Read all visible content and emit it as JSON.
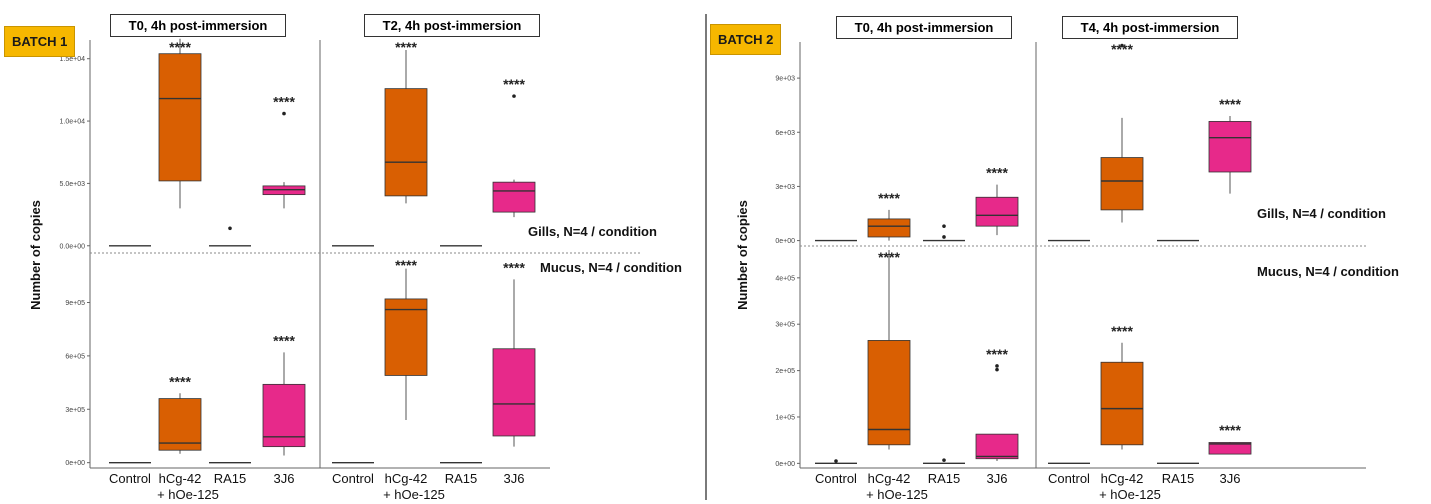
{
  "batches": [
    {
      "label": "BATCH 1",
      "y_label": "Number of copies",
      "panels": [
        "T0, 4h post-immersion",
        "T2, 4h post-immersion"
      ],
      "row_labels": [
        "Gills, N=4 / condition",
        "Mucus, N=4 / condition"
      ],
      "categories": [
        "Control",
        "hCg-42\n+ hOe-125",
        "RA15",
        "3J6"
      ],
      "top_ticks": [
        "0.0e+00",
        "5.0e+03",
        "1.0e+04",
        "1.5e+04"
      ],
      "bottom_ticks": [
        "0e+00",
        "3e+05",
        "6e+05",
        "9e+05"
      ]
    },
    {
      "label": "BATCH 2",
      "y_label": "Number of copies",
      "panels": [
        "T0, 4h post-immersion",
        "T4, 4h post-immersion"
      ],
      "row_labels": [
        "Gills, N=4 / condition",
        "Mucus, N=4 / condition"
      ],
      "categories": [
        "Control",
        "hCg-42\n+ hOe-125",
        "RA15",
        "3J6"
      ],
      "top_ticks": [
        "0e+00",
        "3e+03",
        "6e+03",
        "9e+03"
      ],
      "bottom_ticks": [
        "0e+00",
        "1e+05",
        "2e+05",
        "3e+05",
        "4e+05"
      ]
    }
  ],
  "colors": {
    "hCg-42": "#d95f02",
    "3J6": "#e7298a",
    "box_line": "#333333"
  },
  "chart_data": [
    {
      "type": "box",
      "batch": "BATCH 1",
      "panel": "T0, 4h post-immersion",
      "tissue": "Gills",
      "ylim": [
        -500,
        16500
      ],
      "boxes": [
        {
          "category": "Control",
          "q1": 0,
          "median": 0,
          "q3": 0,
          "whisker_low": 0,
          "whisker_high": 0,
          "outliers": [],
          "sig": ""
        },
        {
          "category": "hCg-42 + hOe-125",
          "q1": 5200,
          "median": 11800,
          "q3": 15400,
          "whisker_low": 3000,
          "whisker_high": 16600,
          "outliers": [],
          "sig": "****"
        },
        {
          "category": "RA15",
          "q1": 0,
          "median": 0,
          "q3": 0,
          "whisker_low": 0,
          "whisker_high": 0,
          "outliers": [
            1400
          ],
          "sig": ""
        },
        {
          "category": "3J6",
          "q1": 4100,
          "median": 4500,
          "q3": 4800,
          "whisker_low": 3000,
          "whisker_high": 5100,
          "outliers": [
            10600
          ],
          "sig": "****"
        }
      ]
    },
    {
      "type": "box",
      "batch": "BATCH 1",
      "panel": "T2, 4h post-immersion",
      "tissue": "Gills",
      "ylim": [
        -500,
        16500
      ],
      "boxes": [
        {
          "category": "Control",
          "q1": 0,
          "median": 0,
          "q3": 0,
          "whisker_low": 0,
          "whisker_high": 0,
          "outliers": [],
          "sig": ""
        },
        {
          "category": "hCg-42 + hOe-125",
          "q1": 4000,
          "median": 6700,
          "q3": 12600,
          "whisker_low": 3400,
          "whisker_high": 15700,
          "outliers": [],
          "sig": "****"
        },
        {
          "category": "RA15",
          "q1": 0,
          "median": 0,
          "q3": 0,
          "whisker_low": 0,
          "whisker_high": 0,
          "outliers": [],
          "sig": ""
        },
        {
          "category": "3J6",
          "q1": 2700,
          "median": 4400,
          "q3": 5100,
          "whisker_low": 2300,
          "whisker_high": 5300,
          "outliers": [
            12000
          ],
          "sig": "****"
        }
      ]
    },
    {
      "type": "box",
      "batch": "BATCH 1",
      "panel": "T0, 4h post-immersion",
      "tissue": "Mucus",
      "ylim": [
        -30000,
        1150000
      ],
      "boxes": [
        {
          "category": "Control",
          "q1": 0,
          "median": 0,
          "q3": 0,
          "whisker_low": 0,
          "whisker_high": 0,
          "outliers": [],
          "sig": ""
        },
        {
          "category": "hCg-42 + hOe-125",
          "q1": 70000,
          "median": 110000,
          "q3": 360000,
          "whisker_low": 50000,
          "whisker_high": 390000,
          "outliers": [],
          "sig": "****"
        },
        {
          "category": "RA15",
          "q1": 0,
          "median": 0,
          "q3": 0,
          "whisker_low": 0,
          "whisker_high": 0,
          "outliers": [],
          "sig": ""
        },
        {
          "category": "3J6",
          "q1": 90000,
          "median": 145000,
          "q3": 440000,
          "whisker_low": 40000,
          "whisker_high": 620000,
          "outliers": [],
          "sig": "****"
        }
      ]
    },
    {
      "type": "box",
      "batch": "BATCH 1",
      "panel": "T2, 4h post-immersion",
      "tissue": "Mucus",
      "ylim": [
        -30000,
        1150000
      ],
      "boxes": [
        {
          "category": "Control",
          "q1": 0,
          "median": 0,
          "q3": 0,
          "whisker_low": 0,
          "whisker_high": 0,
          "outliers": [],
          "sig": ""
        },
        {
          "category": "hCg-42 + hOe-125",
          "q1": 490000,
          "median": 860000,
          "q3": 920000,
          "whisker_low": 240000,
          "whisker_high": 1090000,
          "outliers": [],
          "sig": "****"
        },
        {
          "category": "RA15",
          "q1": 0,
          "median": 0,
          "q3": 0,
          "whisker_low": 0,
          "whisker_high": 0,
          "outliers": [],
          "sig": ""
        },
        {
          "category": "3J6",
          "q1": 150000,
          "median": 330000,
          "q3": 640000,
          "whisker_low": 90000,
          "whisker_high": 1030000,
          "outliers": [],
          "sig": "****"
        }
      ]
    },
    {
      "type": "box",
      "batch": "BATCH 2",
      "panel": "T0, 4h post-immersion",
      "tissue": "Gills",
      "ylim": [
        -300,
        11000
      ],
      "boxes": [
        {
          "category": "Control",
          "q1": 0,
          "median": 0,
          "q3": 0,
          "whisker_low": 0,
          "whisker_high": 0,
          "outliers": [],
          "sig": ""
        },
        {
          "category": "hCg-42 + hOe-125",
          "q1": 200,
          "median": 800,
          "q3": 1200,
          "whisker_low": 0,
          "whisker_high": 1700,
          "outliers": [],
          "sig": "****"
        },
        {
          "category": "RA15",
          "q1": 0,
          "median": 0,
          "q3": 0,
          "whisker_low": 0,
          "whisker_high": 0,
          "outliers": [
            200,
            800
          ],
          "sig": ""
        },
        {
          "category": "3J6",
          "q1": 800,
          "median": 1400,
          "q3": 2400,
          "whisker_low": 300,
          "whisker_high": 3100,
          "outliers": [],
          "sig": "****"
        }
      ]
    },
    {
      "type": "box",
      "batch": "BATCH 2",
      "panel": "T4, 4h post-immersion",
      "tissue": "Gills",
      "ylim": [
        -300,
        11000
      ],
      "boxes": [
        {
          "category": "Control",
          "q1": 0,
          "median": 0,
          "q3": 0,
          "whisker_low": 0,
          "whisker_high": 0,
          "outliers": [],
          "sig": ""
        },
        {
          "category": "hCg-42 + hOe-125",
          "q1": 1700,
          "median": 3300,
          "q3": 4600,
          "whisker_low": 1000,
          "whisker_high": 6800,
          "outliers": [
            10800
          ],
          "sig": "****"
        },
        {
          "category": "RA15",
          "q1": 0,
          "median": 0,
          "q3": 0,
          "whisker_low": 0,
          "whisker_high": 0,
          "outliers": [],
          "sig": ""
        },
        {
          "category": "3J6",
          "q1": 3800,
          "median": 5700,
          "q3": 6600,
          "whisker_low": 2600,
          "whisker_high": 6900,
          "outliers": [],
          "sig": "****"
        }
      ]
    },
    {
      "type": "box",
      "batch": "BATCH 2",
      "panel": "T0, 4h post-immersion",
      "tissue": "Mucus",
      "ylim": [
        -10000,
        460000
      ],
      "boxes": [
        {
          "category": "Control",
          "q1": 0,
          "median": 0,
          "q3": 0,
          "whisker_low": 0,
          "whisker_high": 0,
          "outliers": [
            5000
          ],
          "sig": ""
        },
        {
          "category": "hCg-42 + hOe-125",
          "q1": 40000,
          "median": 73000,
          "q3": 265000,
          "whisker_low": 30000,
          "whisker_high": 460000,
          "outliers": [],
          "sig": "****"
        },
        {
          "category": "RA15",
          "q1": 0,
          "median": 0,
          "q3": 0,
          "whisker_low": 0,
          "whisker_high": 0,
          "outliers": [
            7000
          ],
          "sig": ""
        },
        {
          "category": "3J6",
          "q1": 10000,
          "median": 15000,
          "q3": 63000,
          "whisker_low": 5000,
          "whisker_high": 63000,
          "outliers": [
            202000,
            210000
          ],
          "sig": "****"
        }
      ]
    },
    {
      "type": "box",
      "batch": "BATCH 2",
      "panel": "T4, 4h post-immersion",
      "tissue": "Mucus",
      "ylim": [
        -10000,
        460000
      ],
      "boxes": [
        {
          "category": "Control",
          "q1": 0,
          "median": 0,
          "q3": 0,
          "whisker_low": 0,
          "whisker_high": 0,
          "outliers": [],
          "sig": ""
        },
        {
          "category": "hCg-42 + hOe-125",
          "q1": 40000,
          "median": 118000,
          "q3": 218000,
          "whisker_low": 30000,
          "whisker_high": 260000,
          "outliers": [],
          "sig": "****"
        },
        {
          "category": "RA15",
          "q1": 0,
          "median": 0,
          "q3": 0,
          "whisker_low": 0,
          "whisker_high": 0,
          "outliers": [],
          "sig": ""
        },
        {
          "category": "3J6",
          "q1": 20000,
          "median": 42000,
          "q3": 45000,
          "whisker_low": 20000,
          "whisker_high": 46000,
          "outliers": [],
          "sig": "****"
        }
      ]
    }
  ]
}
